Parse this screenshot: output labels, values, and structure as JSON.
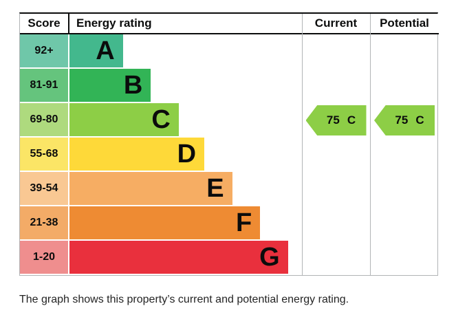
{
  "header": {
    "score": "Score",
    "energy_rating": "Energy rating",
    "current": "Current",
    "potential": "Potential"
  },
  "bands": [
    {
      "letter": "A",
      "score_range": "92+",
      "bar_color": "#43b88d",
      "score_color": "#6fc7a9",
      "width_pct": 23
    },
    {
      "letter": "B",
      "score_range": "81-91",
      "bar_color": "#32b456",
      "score_color": "#65c47d",
      "width_pct": 35
    },
    {
      "letter": "C",
      "score_range": "69-80",
      "bar_color": "#8dce46",
      "score_color": "#aeda7e",
      "width_pct": 47
    },
    {
      "letter": "D",
      "score_range": "55-68",
      "bar_color": "#fed939",
      "score_color": "#fbe566",
      "width_pct": 58
    },
    {
      "letter": "E",
      "score_range": "39-54",
      "bar_color": "#f6ad63",
      "score_color": "#f9c893",
      "width_pct": 70
    },
    {
      "letter": "F",
      "score_range": "21-38",
      "bar_color": "#ee8b33",
      "score_color": "#f3ab67",
      "width_pct": 82
    },
    {
      "letter": "G",
      "score_range": "1-20",
      "bar_color": "#e9303d",
      "score_color": "#ef8e8e",
      "width_pct": 94
    }
  ],
  "current": {
    "value": "75",
    "band_letter": "C",
    "band_index": 2,
    "color": "#8dce46"
  },
  "potential": {
    "value": "75",
    "band_letter": "C",
    "band_index": 2,
    "color": "#8dce46"
  },
  "caption": "The graph shows this property’s current and potential energy rating.",
  "chart_data": {
    "type": "bar",
    "title": "Energy rating",
    "categories": [
      "A",
      "B",
      "C",
      "D",
      "E",
      "F",
      "G"
    ],
    "score_ranges": [
      "92+",
      "81-91",
      "69-80",
      "55-68",
      "39-54",
      "21-38",
      "1-20"
    ],
    "bar_widths_pct": [
      23,
      35,
      47,
      58,
      70,
      82,
      94
    ],
    "band_colors": [
      "#43b88d",
      "#32b456",
      "#8dce46",
      "#fed939",
      "#f6ad63",
      "#ee8b33",
      "#e9303d"
    ],
    "legend_position": "none",
    "grid": false,
    "current": {
      "score": 75,
      "band": "C"
    },
    "potential": {
      "score": 75,
      "band": "C"
    }
  }
}
